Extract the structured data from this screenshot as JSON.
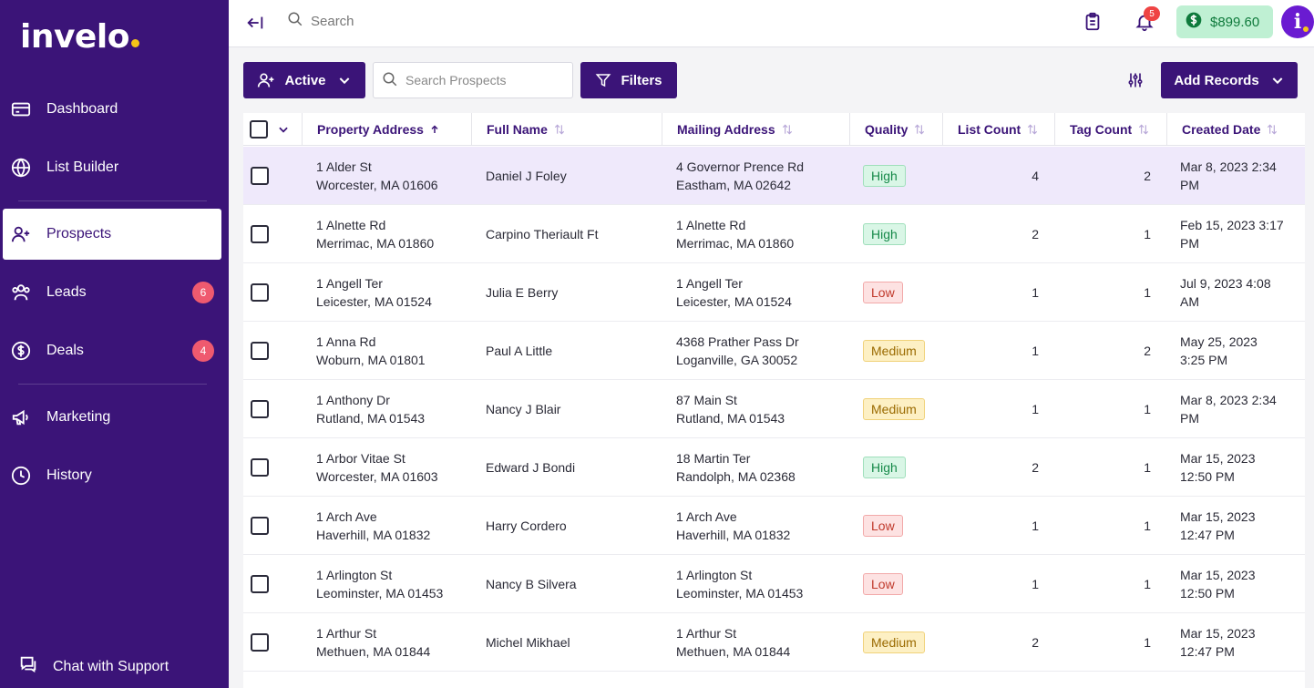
{
  "brand": {
    "name": "invelo"
  },
  "sidebar": {
    "items": [
      {
        "label": "Dashboard",
        "icon": "card-icon"
      },
      {
        "label": "List Builder",
        "icon": "globe-icon"
      },
      {
        "label": "Prospects",
        "icon": "user-plus-icon"
      },
      {
        "label": "Leads",
        "icon": "users-icon",
        "badge": "6"
      },
      {
        "label": "Deals",
        "icon": "dollar-circle-icon",
        "badge": "4"
      },
      {
        "label": "Marketing",
        "icon": "megaphone-icon"
      },
      {
        "label": "History",
        "icon": "clock-icon"
      }
    ],
    "chat_label": "Chat with Support"
  },
  "topbar": {
    "search_placeholder": "Search",
    "notification_count": "5",
    "balance": "$899.60",
    "avatar_letter": "i"
  },
  "toolbar": {
    "status_label": "Active",
    "search_placeholder": "Search Prospects",
    "filters_label": "Filters",
    "add_label": "Add Records"
  },
  "table": {
    "headers": {
      "property": "Property Address",
      "name": "Full Name",
      "mailing": "Mailing Address",
      "quality": "Quality",
      "list_count": "List Count",
      "tag_count": "Tag Count",
      "created": "Created Date"
    },
    "rows": [
      {
        "prop1": "1 Alder St",
        "prop2": "Worcester, MA 01606",
        "name": "Daniel J Foley",
        "mail1": "4 Governor Prence Rd",
        "mail2": "Eastham, MA 02642",
        "quality": "High",
        "list_count": "4",
        "tag_count": "2",
        "date1": "Mar 8, 2023 2:34",
        "date2": "PM"
      },
      {
        "prop1": "1 Alnette Rd",
        "prop2": "Merrimac, MA 01860",
        "name": "Carpino Theriault Ft",
        "mail1": "1 Alnette Rd",
        "mail2": "Merrimac, MA 01860",
        "quality": "High",
        "list_count": "2",
        "tag_count": "1",
        "date1": "Feb 15, 2023 3:17",
        "date2": "PM"
      },
      {
        "prop1": "1 Angell Ter",
        "prop2": "Leicester, MA 01524",
        "name": "Julia E Berry",
        "mail1": "1 Angell Ter",
        "mail2": "Leicester, MA 01524",
        "quality": "Low",
        "list_count": "1",
        "tag_count": "1",
        "date1": "Jul 9, 2023 4:08",
        "date2": "AM"
      },
      {
        "prop1": "1 Anna Rd",
        "prop2": "Woburn, MA 01801",
        "name": "Paul A Little",
        "mail1": "4368 Prather Pass Dr",
        "mail2": "Loganville, GA 30052",
        "quality": "Medium",
        "list_count": "1",
        "tag_count": "2",
        "date1": "May 25, 2023",
        "date2": "3:25 PM"
      },
      {
        "prop1": "1 Anthony Dr",
        "prop2": "Rutland, MA 01543",
        "name": "Nancy J Blair",
        "mail1": "87 Main St",
        "mail2": "Rutland, MA 01543",
        "quality": "Medium",
        "list_count": "1",
        "tag_count": "1",
        "date1": "Mar 8, 2023 2:34",
        "date2": "PM"
      },
      {
        "prop1": "1 Arbor Vitae St",
        "prop2": "Worcester, MA 01603",
        "name": "Edward J Bondi",
        "mail1": "18 Martin Ter",
        "mail2": "Randolph, MA 02368",
        "quality": "High",
        "list_count": "2",
        "tag_count": "1",
        "date1": "Mar 15, 2023",
        "date2": "12:50 PM"
      },
      {
        "prop1": "1 Arch Ave",
        "prop2": "Haverhill, MA 01832",
        "name": "Harry Cordero",
        "mail1": "1 Arch Ave",
        "mail2": "Haverhill, MA 01832",
        "quality": "Low",
        "list_count": "1",
        "tag_count": "1",
        "date1": "Mar 15, 2023",
        "date2": "12:47 PM"
      },
      {
        "prop1": "1 Arlington St",
        "prop2": "Leominster, MA 01453",
        "name": "Nancy B Silvera",
        "mail1": "1 Arlington St",
        "mail2": "Leominster, MA 01453",
        "quality": "Low",
        "list_count": "1",
        "tag_count": "1",
        "date1": "Mar 15, 2023",
        "date2": "12:50 PM"
      },
      {
        "prop1": "1 Arthur St",
        "prop2": "Methuen, MA 01844",
        "name": "Michel Mikhael",
        "mail1": "1 Arthur St",
        "mail2": "Methuen, MA 01844",
        "quality": "Medium",
        "list_count": "2",
        "tag_count": "1",
        "date1": "Mar 15, 2023",
        "date2": "12:47 PM"
      }
    ]
  },
  "colors": {
    "brand_purple": "#3b1478",
    "accent_yellow": "#f5c518",
    "badge_red": "#ef5a6f",
    "highlight_row": "#efe9fb"
  }
}
